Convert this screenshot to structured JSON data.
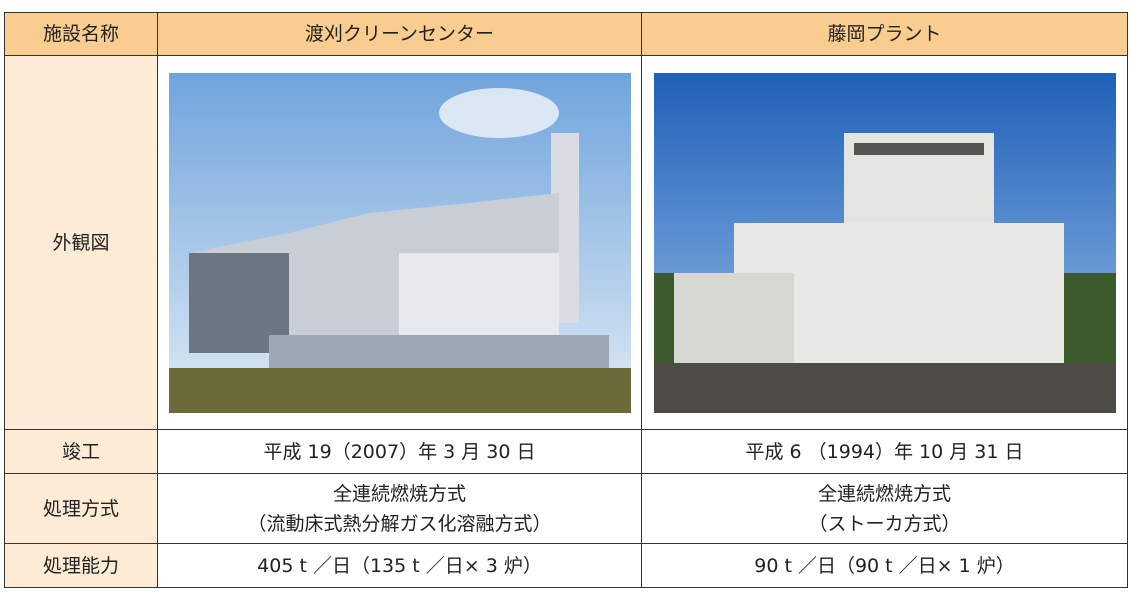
{
  "table": {
    "header": [
      "施設名称",
      "渡刈クリーンセンター",
      "藤岡プラント"
    ],
    "image_row": {
      "label": "外観図"
    },
    "rows": [
      {
        "label": "竣工",
        "cells": [
          [
            "平成 19（2007）年 3 月 30 日"
          ],
          [
            "平成 6 （1994）年 10 月 31 日"
          ]
        ]
      },
      {
        "label": "処理方式",
        "cells": [
          [
            "全連続燃焼方式",
            "（流動床式熱分解ガス化溶融方式）"
          ],
          [
            "全連続燃焼方式",
            "（ストーカ方式）"
          ]
        ]
      },
      {
        "label": "処理能力",
        "cells": [
          [
            "405 t ／日（135 t ／日× 3 炉）"
          ],
          [
            "90 t ／日（90 t ／日× 1 炉）"
          ]
        ]
      }
    ]
  }
}
